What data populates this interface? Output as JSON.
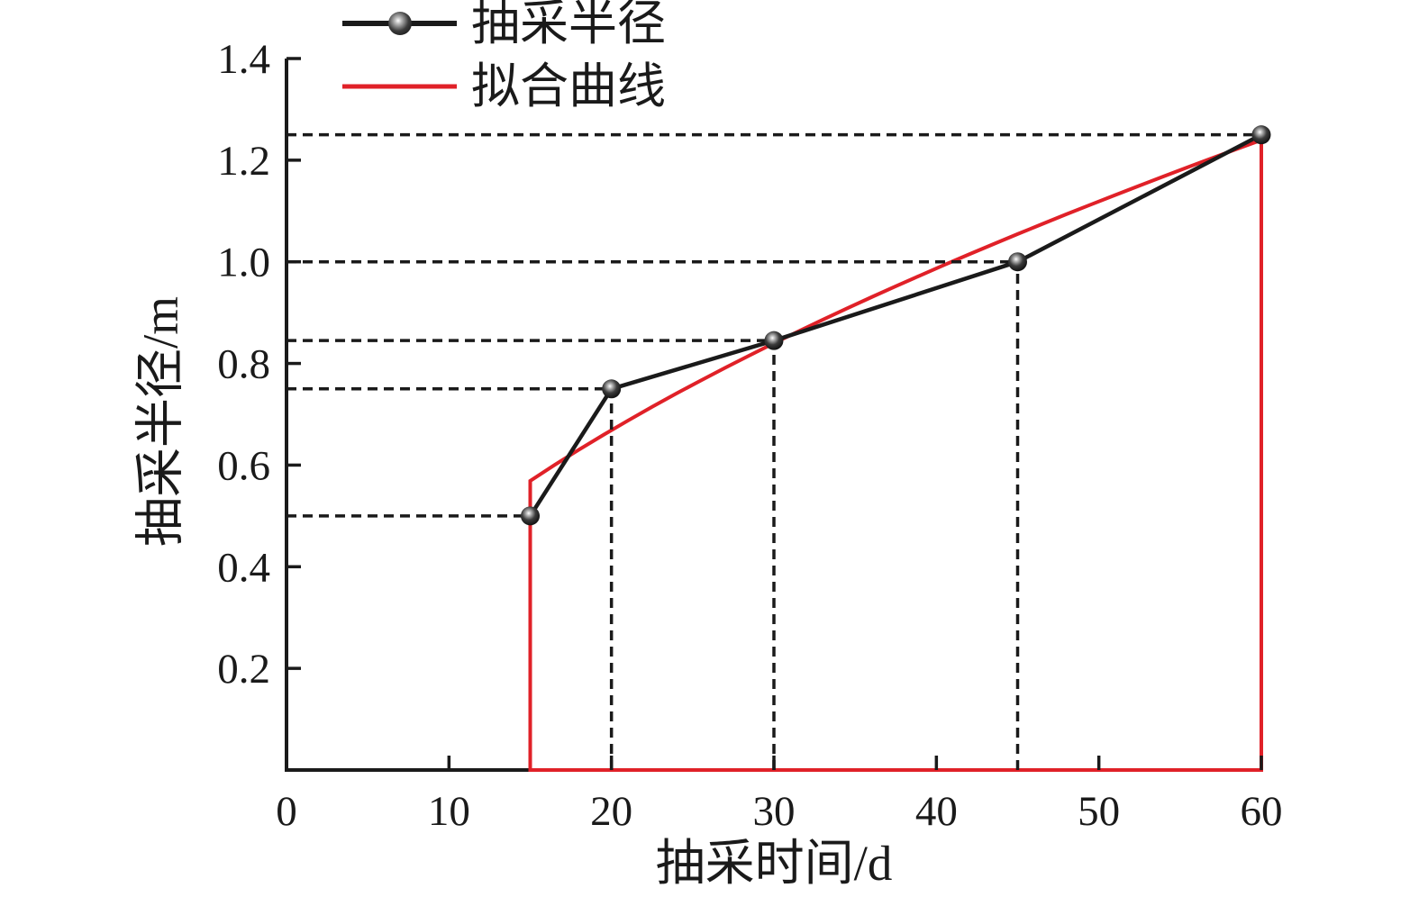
{
  "figure": {
    "background": "#ffffff",
    "text_color": "#1a1a1a"
  },
  "chart_data": {
    "type": "line",
    "title": "",
    "x_label": "抽采时间/d",
    "y_label": "抽采半径/m",
    "xlim": [
      0,
      60
    ],
    "ylim": [
      0,
      1.4
    ],
    "x_ticks": [
      0,
      10,
      20,
      30,
      40,
      50,
      60
    ],
    "y_ticks": [
      0.2,
      0.4,
      0.6,
      0.8,
      1.0,
      1.2,
      1.4
    ],
    "grid": "off",
    "legend_position": "top-left",
    "series": [
      {
        "name": "抽采半径",
        "kind": "line-with-markers",
        "color": "#1a1a1a",
        "marker": "sphere",
        "points": [
          [
            15,
            0.5
          ],
          [
            20,
            0.75
          ],
          [
            30,
            0.845
          ],
          [
            45,
            1.0
          ],
          [
            60,
            1.25
          ]
        ]
      },
      {
        "name": "拟合曲线",
        "kind": "fit-curve",
        "color": "#e02128",
        "fit_form": "r = a * t^b",
        "fit_a": 0.1243,
        "fit_b": 0.5617,
        "domain": [
          15,
          60
        ],
        "drops_to_axis": true
      }
    ],
    "guides": {
      "color": "#1a1a1a",
      "dashed_horizontal_at_points": [
        0.5,
        0.75,
        0.845,
        1.0,
        1.25
      ],
      "dashed_vertical_at_x": [
        20,
        30,
        45
      ]
    }
  }
}
